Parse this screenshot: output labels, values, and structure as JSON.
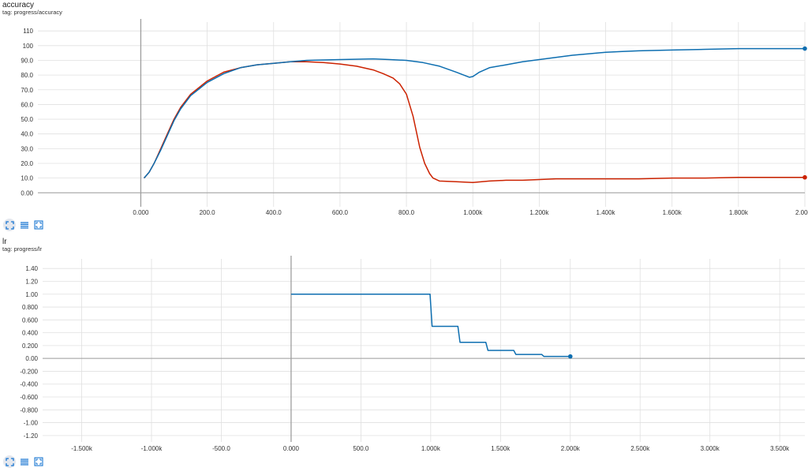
{
  "colors": {
    "blue": "#0d6eb0",
    "red": "#cc2200",
    "grid": "#e0e0e0",
    "axis": "#9e9e9e"
  },
  "toolbar_icons": [
    "fullscreen-icon",
    "list-icon",
    "fit-domain-icon"
  ],
  "chart_data": [
    {
      "type": "line",
      "title": "accuracy",
      "subtitle": "tag: progress/accuracy",
      "xlim": [
        -310,
        2000
      ],
      "ylim": [
        -9.5,
        116
      ],
      "x_ticks": [
        {
          "v": 0,
          "label": "0.000"
        },
        {
          "v": 200,
          "label": "200.0"
        },
        {
          "v": 400,
          "label": "400.0"
        },
        {
          "v": 600,
          "label": "600.0"
        },
        {
          "v": 800,
          "label": "800.0"
        },
        {
          "v": 1000,
          "label": "1.000k"
        },
        {
          "v": 1200,
          "label": "1.200k"
        },
        {
          "v": 1400,
          "label": "1.400k"
        },
        {
          "v": 1600,
          "label": "1.600k"
        },
        {
          "v": 1800,
          "label": "1.800k"
        },
        {
          "v": 2000,
          "label": "2.000k"
        }
      ],
      "y_ticks": [
        {
          "v": 0,
          "label": "0.00"
        },
        {
          "v": 10,
          "label": "10.0"
        },
        {
          "v": 20,
          "label": "20.0"
        },
        {
          "v": 30,
          "label": "30.0"
        },
        {
          "v": 40,
          "label": "40.0"
        },
        {
          "v": 50,
          "label": "50.0"
        },
        {
          "v": 60,
          "label": "60.0"
        },
        {
          "v": 70,
          "label": "70.0"
        },
        {
          "v": 80,
          "label": "80.0"
        },
        {
          "v": 90,
          "label": "90.0"
        },
        {
          "v": 100,
          "label": "100"
        },
        {
          "v": 110,
          "label": "110"
        }
      ],
      "grid": true,
      "series": [
        {
          "color": "#cc2200",
          "x": [
            10,
            25,
            40,
            60,
            80,
            100,
            120,
            150,
            200,
            250,
            300,
            350,
            400,
            450,
            500,
            550,
            600,
            650,
            700,
            730,
            760,
            780,
            800,
            820,
            840,
            855,
            870,
            880,
            900,
            950,
            1000,
            1050,
            1100,
            1150,
            1200,
            1250,
            1300,
            1400,
            1500,
            1600,
            1700,
            1800,
            1900,
            2000
          ],
          "y": [
            10,
            14,
            20,
            30,
            40,
            50,
            58,
            67,
            76,
            82,
            85,
            87,
            88,
            89,
            89,
            88.5,
            87.5,
            86,
            83.5,
            81,
            78,
            74,
            67,
            52,
            31,
            20,
            13,
            10,
            8,
            7.5,
            7,
            8,
            8.5,
            8.5,
            9,
            9.5,
            9.5,
            9.5,
            9.5,
            10,
            10,
            10.5,
            10.5,
            10.5
          ]
        },
        {
          "color": "#0d6eb0",
          "x": [
            10,
            25,
            40,
            60,
            80,
            100,
            120,
            150,
            200,
            250,
            300,
            350,
            400,
            450,
            500,
            600,
            700,
            750,
            800,
            850,
            900,
            950,
            990,
            1000,
            1020,
            1050,
            1100,
            1150,
            1200,
            1250,
            1300,
            1350,
            1400,
            1450,
            1500,
            1600,
            1700,
            1800,
            1900,
            2000
          ],
          "y": [
            10,
            14,
            20,
            29,
            39,
            49,
            57,
            66,
            75,
            81,
            85,
            87,
            88,
            89,
            90,
            90.5,
            91,
            90.5,
            90,
            88.5,
            86,
            82,
            78.5,
            79,
            82,
            85,
            87,
            89,
            90.5,
            92,
            93.5,
            94.5,
            95.5,
            96,
            96.5,
            97,
            97.5,
            98,
            98,
            98
          ]
        }
      ]
    },
    {
      "type": "line",
      "title": "lr",
      "subtitle": "tag: progress/lr",
      "xlim": [
        -1780,
        3680
      ],
      "ylim": [
        -1.3,
        1.55
      ],
      "x_ticks": [
        {
          "v": -1500,
          "label": "-1.500k"
        },
        {
          "v": -1000,
          "label": "-1.000k"
        },
        {
          "v": -500,
          "label": "-500.0"
        },
        {
          "v": 0,
          "label": "0.000"
        },
        {
          "v": 500,
          "label": "500.0"
        },
        {
          "v": 1000,
          "label": "1.000k"
        },
        {
          "v": 1500,
          "label": "1.500k"
        },
        {
          "v": 2000,
          "label": "2.000k"
        },
        {
          "v": 2500,
          "label": "2.500k"
        },
        {
          "v": 3000,
          "label": "3.000k"
        },
        {
          "v": 3500,
          "label": "3.500k"
        }
      ],
      "y_ticks": [
        {
          "v": -1.2,
          "label": "-1.20"
        },
        {
          "v": -1.0,
          "label": "-1.00"
        },
        {
          "v": -0.8,
          "label": "-0.800"
        },
        {
          "v": -0.6,
          "label": "-0.600"
        },
        {
          "v": -0.4,
          "label": "-0.400"
        },
        {
          "v": -0.2,
          "label": "-0.200"
        },
        {
          "v": 0,
          "label": "0.00"
        },
        {
          "v": 0.2,
          "label": "0.200"
        },
        {
          "v": 0.4,
          "label": "0.400"
        },
        {
          "v": 0.6,
          "label": "0.600"
        },
        {
          "v": 0.8,
          "label": "0.800"
        },
        {
          "v": 1.0,
          "label": "1.00"
        },
        {
          "v": 1.2,
          "label": "1.20"
        },
        {
          "v": 1.4,
          "label": "1.40"
        }
      ],
      "grid": true,
      "series": [
        {
          "color": "#0d6eb0",
          "x": [
            0,
            995,
            1010,
            1195,
            1210,
            1395,
            1410,
            1595,
            1610,
            1795,
            1810,
            2000
          ],
          "y": [
            1.0,
            1.0,
            0.5,
            0.5,
            0.25,
            0.25,
            0.125,
            0.125,
            0.0625,
            0.0625,
            0.03125,
            0.03125
          ]
        }
      ]
    }
  ]
}
